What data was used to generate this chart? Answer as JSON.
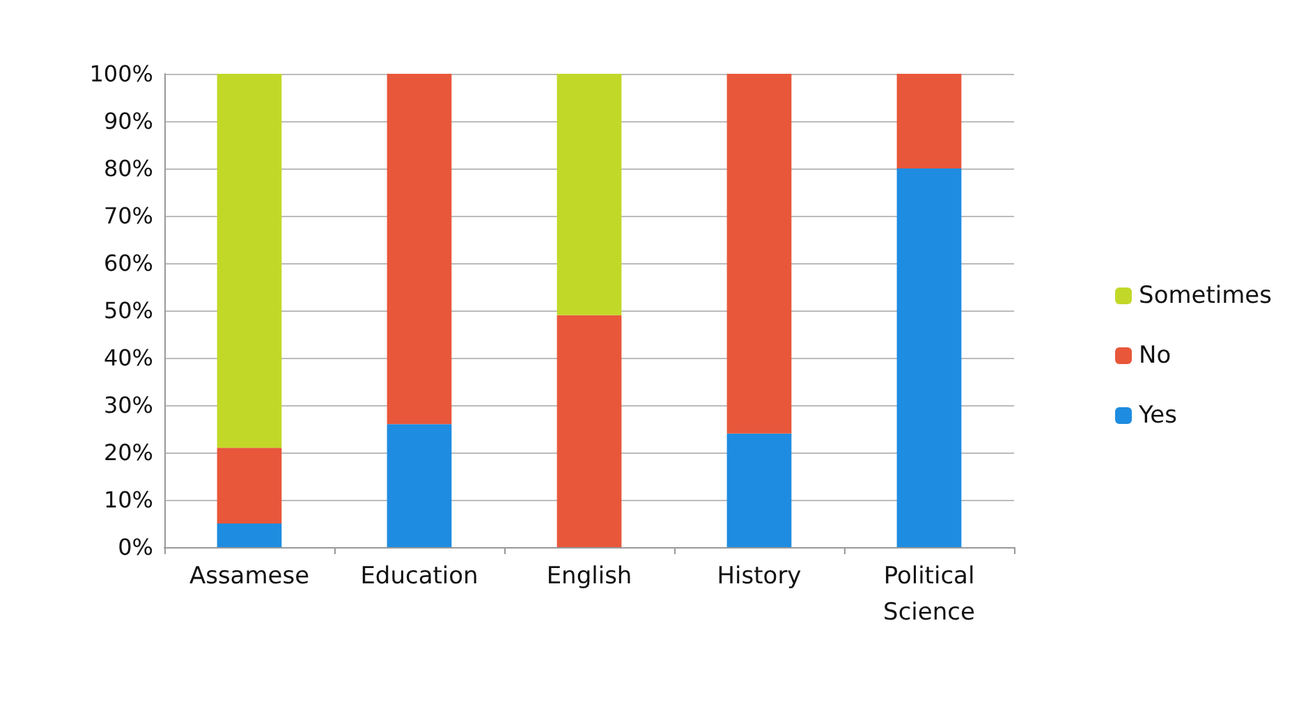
{
  "chart_data": {
    "type": "bar",
    "stacked": true,
    "categories": [
      "Assamese",
      "Education",
      "English",
      "History",
      "Political Science"
    ],
    "series": [
      {
        "name": "Yes",
        "color": "#1e8ce0",
        "values": [
          5,
          26,
          0,
          24,
          80
        ]
      },
      {
        "name": "No",
        "color": "#e8573a",
        "values": [
          16,
          74,
          49,
          76,
          20
        ]
      },
      {
        "name": "Sometimes",
        "color": "#c2d829",
        "values": [
          79,
          0,
          51,
          0,
          0
        ]
      }
    ],
    "ylim": [
      0,
      100
    ],
    "yticks": [
      {
        "value": 0,
        "label": "0%"
      },
      {
        "value": 10,
        "label": "10%"
      },
      {
        "value": 20,
        "label": "20%"
      },
      {
        "value": 30,
        "label": "30%"
      },
      {
        "value": 40,
        "label": "40%"
      },
      {
        "value": 50,
        "label": "50%"
      },
      {
        "value": 60,
        "label": "60%"
      },
      {
        "value": 70,
        "label": "70%"
      },
      {
        "value": 80,
        "label": "80%"
      },
      {
        "value": 90,
        "label": "90%"
      },
      {
        "value": 100,
        "label": "100%"
      }
    ],
    "grid": "y",
    "legend": "right"
  }
}
